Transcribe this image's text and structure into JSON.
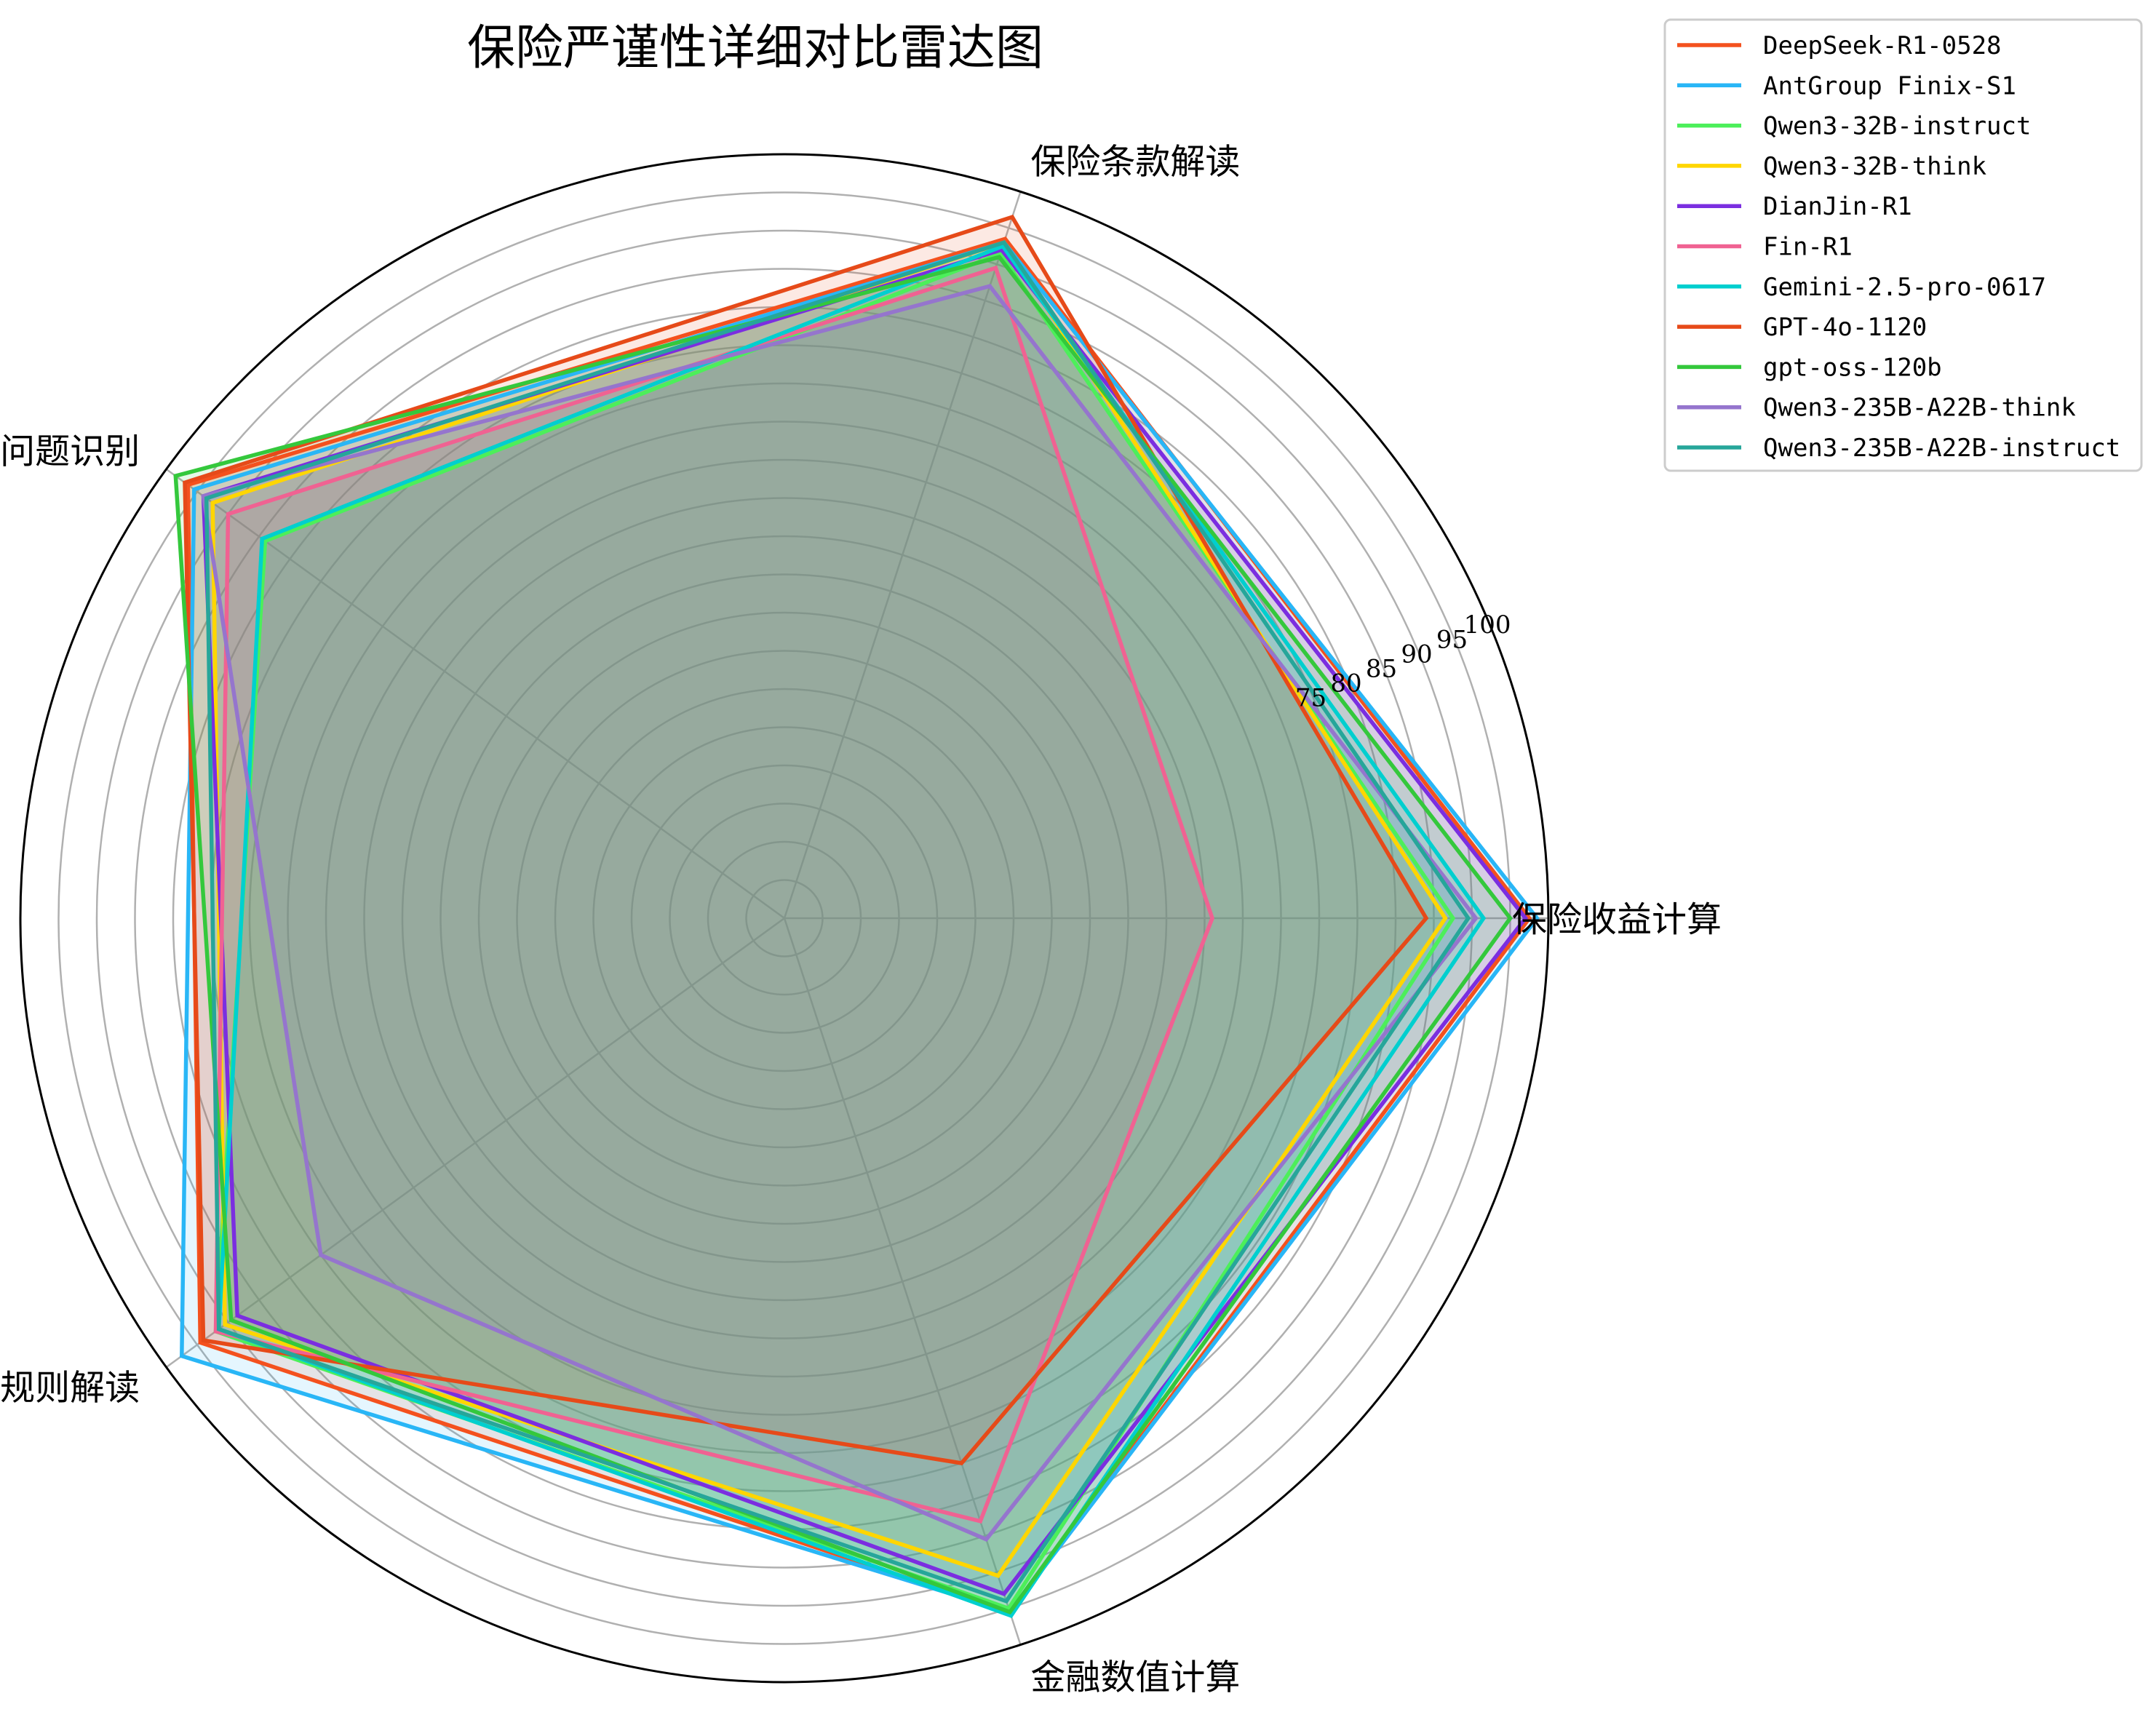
{
  "chart_data": {
    "type": "radar",
    "title": "保险严谨性详细对比雷达图",
    "axes": [
      "保险收益计算",
      "保险条款解读",
      "保险问题识别",
      "规则解读",
      "金融数值计算"
    ],
    "radial_ticks": [
      75,
      80,
      85,
      90,
      95,
      100
    ],
    "rlim": [
      0,
      100
    ],
    "grid": true,
    "legend_position": "top-right, outside",
    "series": [
      {
        "name": "DeepSeek-R1-0528",
        "color": "#f4511e",
        "values": [
          97.5,
          93.5,
          96.5,
          94.5,
          95.5
        ]
      },
      {
        "name": "AntGroup Finix-S1",
        "color": "#29b6f6",
        "values": [
          98.5,
          93.0,
          95.5,
          97.5,
          95.5
        ]
      },
      {
        "name": "Qwen3-32B-instruct",
        "color": "#4cef5a",
        "values": [
          87.5,
          91.5,
          84.0,
          92.0,
          95.0
        ]
      },
      {
        "name": "Qwen3-32B-think",
        "color": "#ffd600",
        "values": [
          86.5,
          93.0,
          92.5,
          90.5,
          90.5
        ]
      },
      {
        "name": "DianJin-R1",
        "color": "#7b2ee0",
        "values": [
          97.0,
          92.0,
          94.0,
          88.5,
          93.0
        ]
      },
      {
        "name": "Fin-R1",
        "color": "#f06292",
        "values": [
          56.0,
          89.5,
          90.0,
          92.0,
          83.0
        ]
      },
      {
        "name": "Gemini-2.5-pro-0617",
        "color": "#00cfcf",
        "values": [
          91.5,
          92.5,
          84.5,
          91.5,
          96.0
        ]
      },
      {
        "name": "GPT-4o-1120",
        "color": "#e64a19",
        "values": [
          84.0,
          96.5,
          97.0,
          94.0,
          75.0
        ]
      },
      {
        "name": "gpt-oss-120b",
        "color": "#34c83c",
        "values": [
          95.0,
          91.0,
          98.5,
          89.5,
          95.5
        ]
      },
      {
        "name": "Qwen3-235B-A22B-think",
        "color": "#9575cd",
        "values": [
          90.5,
          87.0,
          94.0,
          75.0,
          85.5
        ]
      },
      {
        "name": "Qwen3-235B-A22B-instruct",
        "color": "#26a69a",
        "values": [
          89.5,
          93.0,
          93.5,
          91.5,
          94.0
        ]
      }
    ]
  }
}
